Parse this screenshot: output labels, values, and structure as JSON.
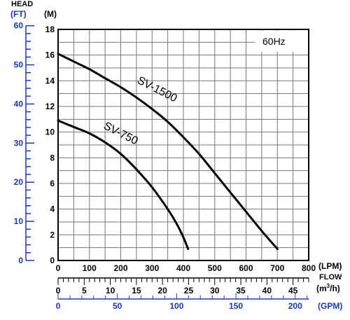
{
  "chart_data": {
    "type": "line",
    "annotation": "60Hz",
    "head_label": "HEAD",
    "flow_label": "FLOW",
    "axes": {
      "y_m": {
        "unit": "(M)",
        "range": [
          0,
          18
        ],
        "ticks": [
          "0",
          "2",
          "4",
          "6",
          "8",
          "10",
          "12",
          "14",
          "16",
          "18"
        ]
      },
      "y_ft": {
        "unit": "(FT)",
        "range": [
          0,
          60
        ],
        "ticks": [
          "0",
          "10",
          "20",
          "30",
          "40",
          "50",
          "60"
        ]
      },
      "x_lpm": {
        "unit": "(LPM)",
        "range": [
          0,
          800
        ],
        "ticks": [
          "0",
          "100",
          "200",
          "300",
          "400",
          "500",
          "600",
          "700",
          "800"
        ]
      },
      "x_m3h": {
        "unit_base": "(m",
        "unit_sup": "3",
        "unit_tail": "/h)",
        "range": [
          0,
          48
        ],
        "ticks": [
          "0",
          "5",
          "10",
          "15",
          "20",
          "25",
          "30",
          "35",
          "40",
          "45"
        ]
      },
      "x_gpm": {
        "unit": "(GPM)",
        "range": [
          0,
          211.3
        ],
        "ticks": [
          "0",
          "50",
          "100",
          "150",
          "200"
        ]
      }
    },
    "grid": true,
    "series": [
      {
        "name": "SV-1500",
        "color": "#000000",
        "x": [
          0,
          50,
          100,
          150,
          200,
          250,
          300,
          350,
          400,
          450,
          500,
          550,
          600,
          650,
          700
        ],
        "y": [
          16.1,
          15.5,
          14.9,
          14.2,
          13.5,
          12.7,
          11.8,
          10.8,
          9.6,
          8.3,
          6.8,
          5.3,
          3.8,
          2.3,
          0.9
        ]
      },
      {
        "name": "SV-750",
        "color": "#000000",
        "x": [
          0,
          50,
          100,
          150,
          200,
          250,
          300,
          350,
          380,
          400,
          415
        ],
        "y": [
          10.9,
          10.4,
          9.9,
          9.2,
          8.3,
          7.1,
          5.7,
          4.0,
          2.8,
          1.8,
          0.9
        ]
      }
    ]
  }
}
